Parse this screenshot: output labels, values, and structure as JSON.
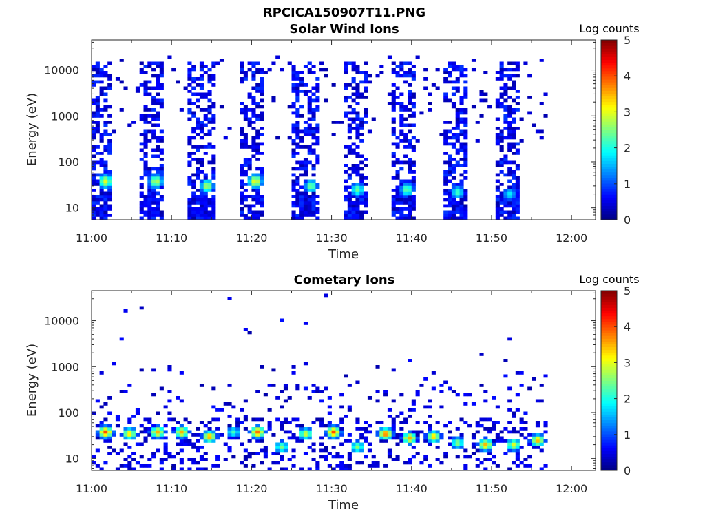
{
  "figure_title": "RPCICA150907T11.PNG",
  "chart_data": [
    {
      "type": "heatmap",
      "title": "Solar Wind Ions",
      "xlabel": "Time",
      "ylabel": "Energy (eV)",
      "x_ticks": [
        "11:00",
        "11:10",
        "11:20",
        "11:30",
        "11:40",
        "11:50",
        "12:00"
      ],
      "x_range": [
        "11:00",
        "12:03"
      ],
      "y_ticks": [
        10,
        100,
        1000,
        10000
      ],
      "y_scale": "log",
      "y_range": [
        5.5,
        45000
      ],
      "colorbar": {
        "label": "Log counts",
        "ticks": [
          0,
          1,
          2,
          3,
          4,
          5
        ],
        "range": [
          0,
          5
        ],
        "colormap": "jet"
      },
      "data_end": "11:57",
      "bursts": [
        {
          "start": "11:00",
          "end": "11:02.5",
          "peak_time": "11:01.5",
          "peak_energy": 38,
          "peak_log_counts": 3.0
        },
        {
          "start": "11:06",
          "end": "11:09",
          "peak_time": "11:07.8",
          "peak_energy": 38,
          "peak_log_counts": 2.8
        },
        {
          "start": "11:12",
          "end": "11:15.5",
          "peak_time": "11:14.2",
          "peak_energy": 30,
          "peak_log_counts": 2.8
        },
        {
          "start": "11:18.5",
          "end": "11:21.5",
          "peak_time": "11:20.2",
          "peak_energy": 38,
          "peak_log_counts": 3.1
        },
        {
          "start": "11:25",
          "end": "11:28.5",
          "peak_time": "11:27.2",
          "peak_energy": 30,
          "peak_log_counts": 2.5
        },
        {
          "start": "11:31.5",
          "end": "11:34.5",
          "peak_time": "11:33",
          "peak_energy": 25,
          "peak_log_counts": 2.4
        },
        {
          "start": "11:37.5",
          "end": "11:40.5",
          "peak_time": "11:39.2",
          "peak_energy": 25,
          "peak_log_counts": 2.4
        },
        {
          "start": "11:44",
          "end": "11:47",
          "peak_time": "11:45.5",
          "peak_energy": 22,
          "peak_log_counts": 2.2
        },
        {
          "start": "11:50.5",
          "end": "11:53.5",
          "peak_time": "11:52",
          "peak_energy": 20,
          "peak_log_counts": 1.8
        }
      ]
    },
    {
      "type": "heatmap",
      "title": "Cometary Ions",
      "xlabel": "Time",
      "ylabel": "Energy (eV)",
      "x_ticks": [
        "11:00",
        "11:10",
        "11:20",
        "11:30",
        "11:40",
        "11:50",
        "12:00"
      ],
      "x_range": [
        "11:00",
        "12:03"
      ],
      "y_ticks": [
        10,
        100,
        1000,
        10000
      ],
      "y_scale": "log",
      "y_range": [
        5.5,
        45000
      ],
      "colorbar": {
        "label": "Log counts",
        "ticks": [
          0,
          1,
          2,
          3,
          4,
          5
        ],
        "range": [
          0,
          5
        ],
        "colormap": "jet"
      },
      "data_end": "11:57",
      "blobs": [
        {
          "time": "11:01.5",
          "energy": 38,
          "log_counts": 4.0
        },
        {
          "time": "11:04.5",
          "energy": 35,
          "log_counts": 3.3
        },
        {
          "time": "11:08",
          "energy": 38,
          "log_counts": 3.5
        },
        {
          "time": "11:11",
          "energy": 38,
          "log_counts": 3.5
        },
        {
          "time": "11:14.5",
          "energy": 30,
          "log_counts": 3.6
        },
        {
          "time": "11:17.5",
          "energy": 38,
          "log_counts": 2.2
        },
        {
          "time": "11:20.5",
          "energy": 38,
          "log_counts": 3.8
        },
        {
          "time": "11:23.5",
          "energy": 18,
          "log_counts": 2.5
        },
        {
          "time": "11:26.5",
          "energy": 35,
          "log_counts": 3.0
        },
        {
          "time": "11:30",
          "energy": 38,
          "log_counts": 4.0
        },
        {
          "time": "11:33",
          "energy": 18,
          "log_counts": 2.6
        },
        {
          "time": "11:36.5",
          "energy": 35,
          "log_counts": 3.8
        },
        {
          "time": "11:39.5",
          "energy": 28,
          "log_counts": 3.5
        },
        {
          "time": "11:42.5",
          "energy": 30,
          "log_counts": 3.4
        },
        {
          "time": "11:45.5",
          "energy": 22,
          "log_counts": 2.6
        },
        {
          "time": "11:49",
          "energy": 20,
          "log_counts": 3.5
        },
        {
          "time": "11:52.5",
          "energy": 20,
          "log_counts": 3.0
        },
        {
          "time": "11:55.5",
          "energy": 25,
          "log_counts": 3.5
        }
      ]
    }
  ]
}
